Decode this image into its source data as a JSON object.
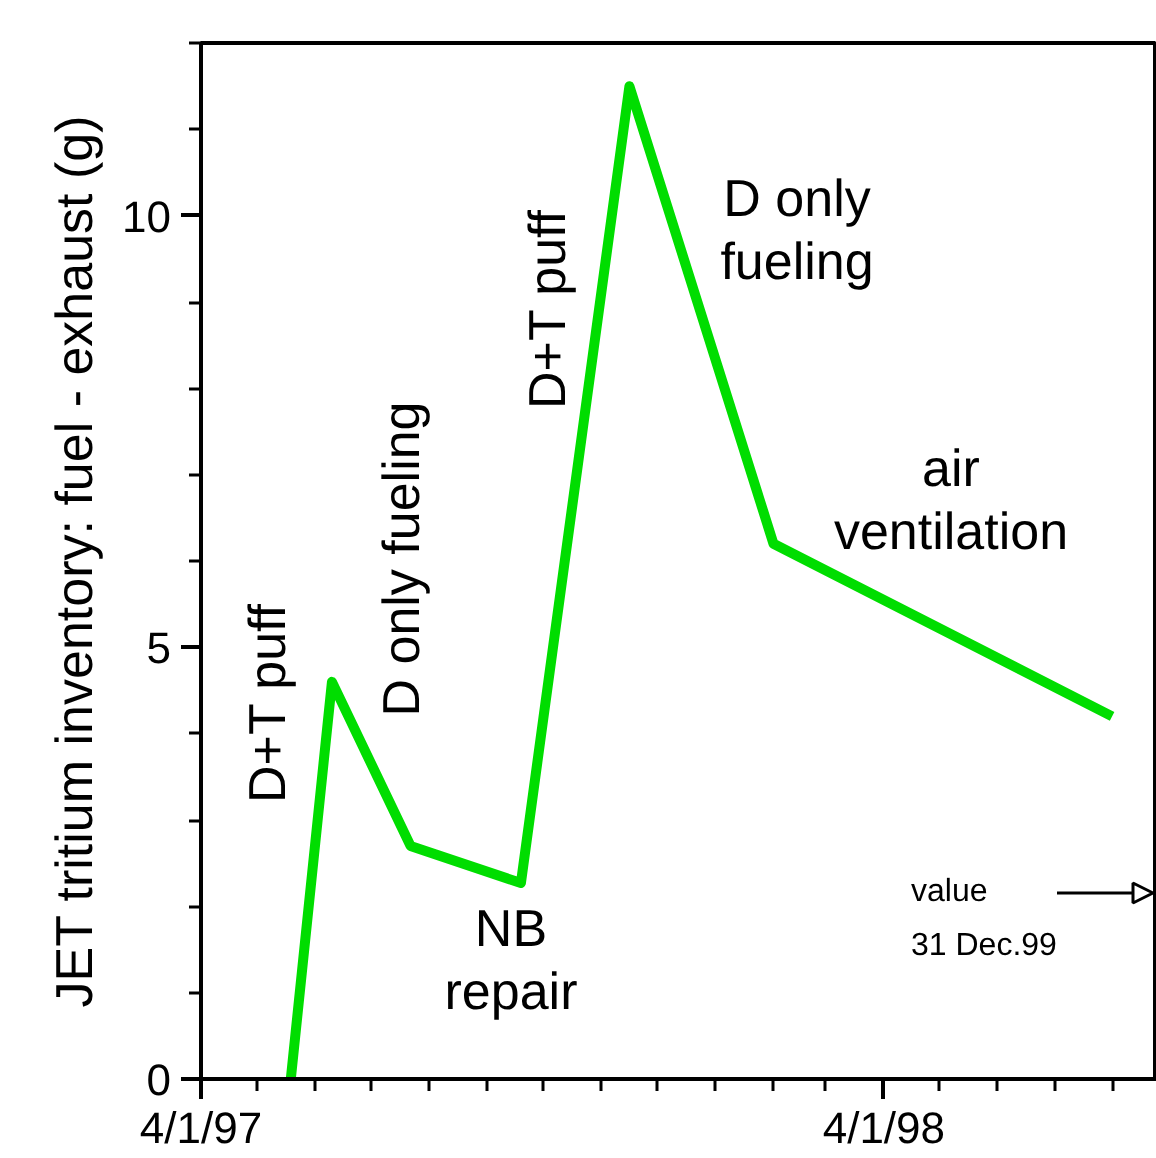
{
  "chart_data": {
    "type": "line",
    "ylabel": "JET tritium inventory: fuel - exhaust (g)",
    "x": [
      "1997-05-19",
      "1997-06-10",
      "1997-07-22",
      "1997-09-19",
      "1997-11-16",
      "1998-02-01",
      "1998-08-01"
    ],
    "series": [
      {
        "color": "#00dd00",
        "values": [
          0,
          4.6,
          2.7,
          2.27,
          11.5,
          6.2,
          4.2
        ]
      }
    ],
    "xlim": [
      "1997-04-01",
      "1998-08-25"
    ],
    "xticks": [
      {
        "value": "1997-04-01",
        "label": "4/1/97"
      },
      {
        "value": "1998-04-01",
        "label": "4/1/98"
      }
    ],
    "ylim": [
      0,
      12
    ],
    "yticks": [
      0,
      5,
      10
    ],
    "grid": false,
    "marker": "none",
    "line_style": "solid",
    "annotations": [
      "D+T puff",
      "D only fueling",
      "NB\nrepair",
      "D+T puff",
      "D only\nfueling",
      "air\nventilation",
      "value\n31 Dec.99"
    ]
  }
}
